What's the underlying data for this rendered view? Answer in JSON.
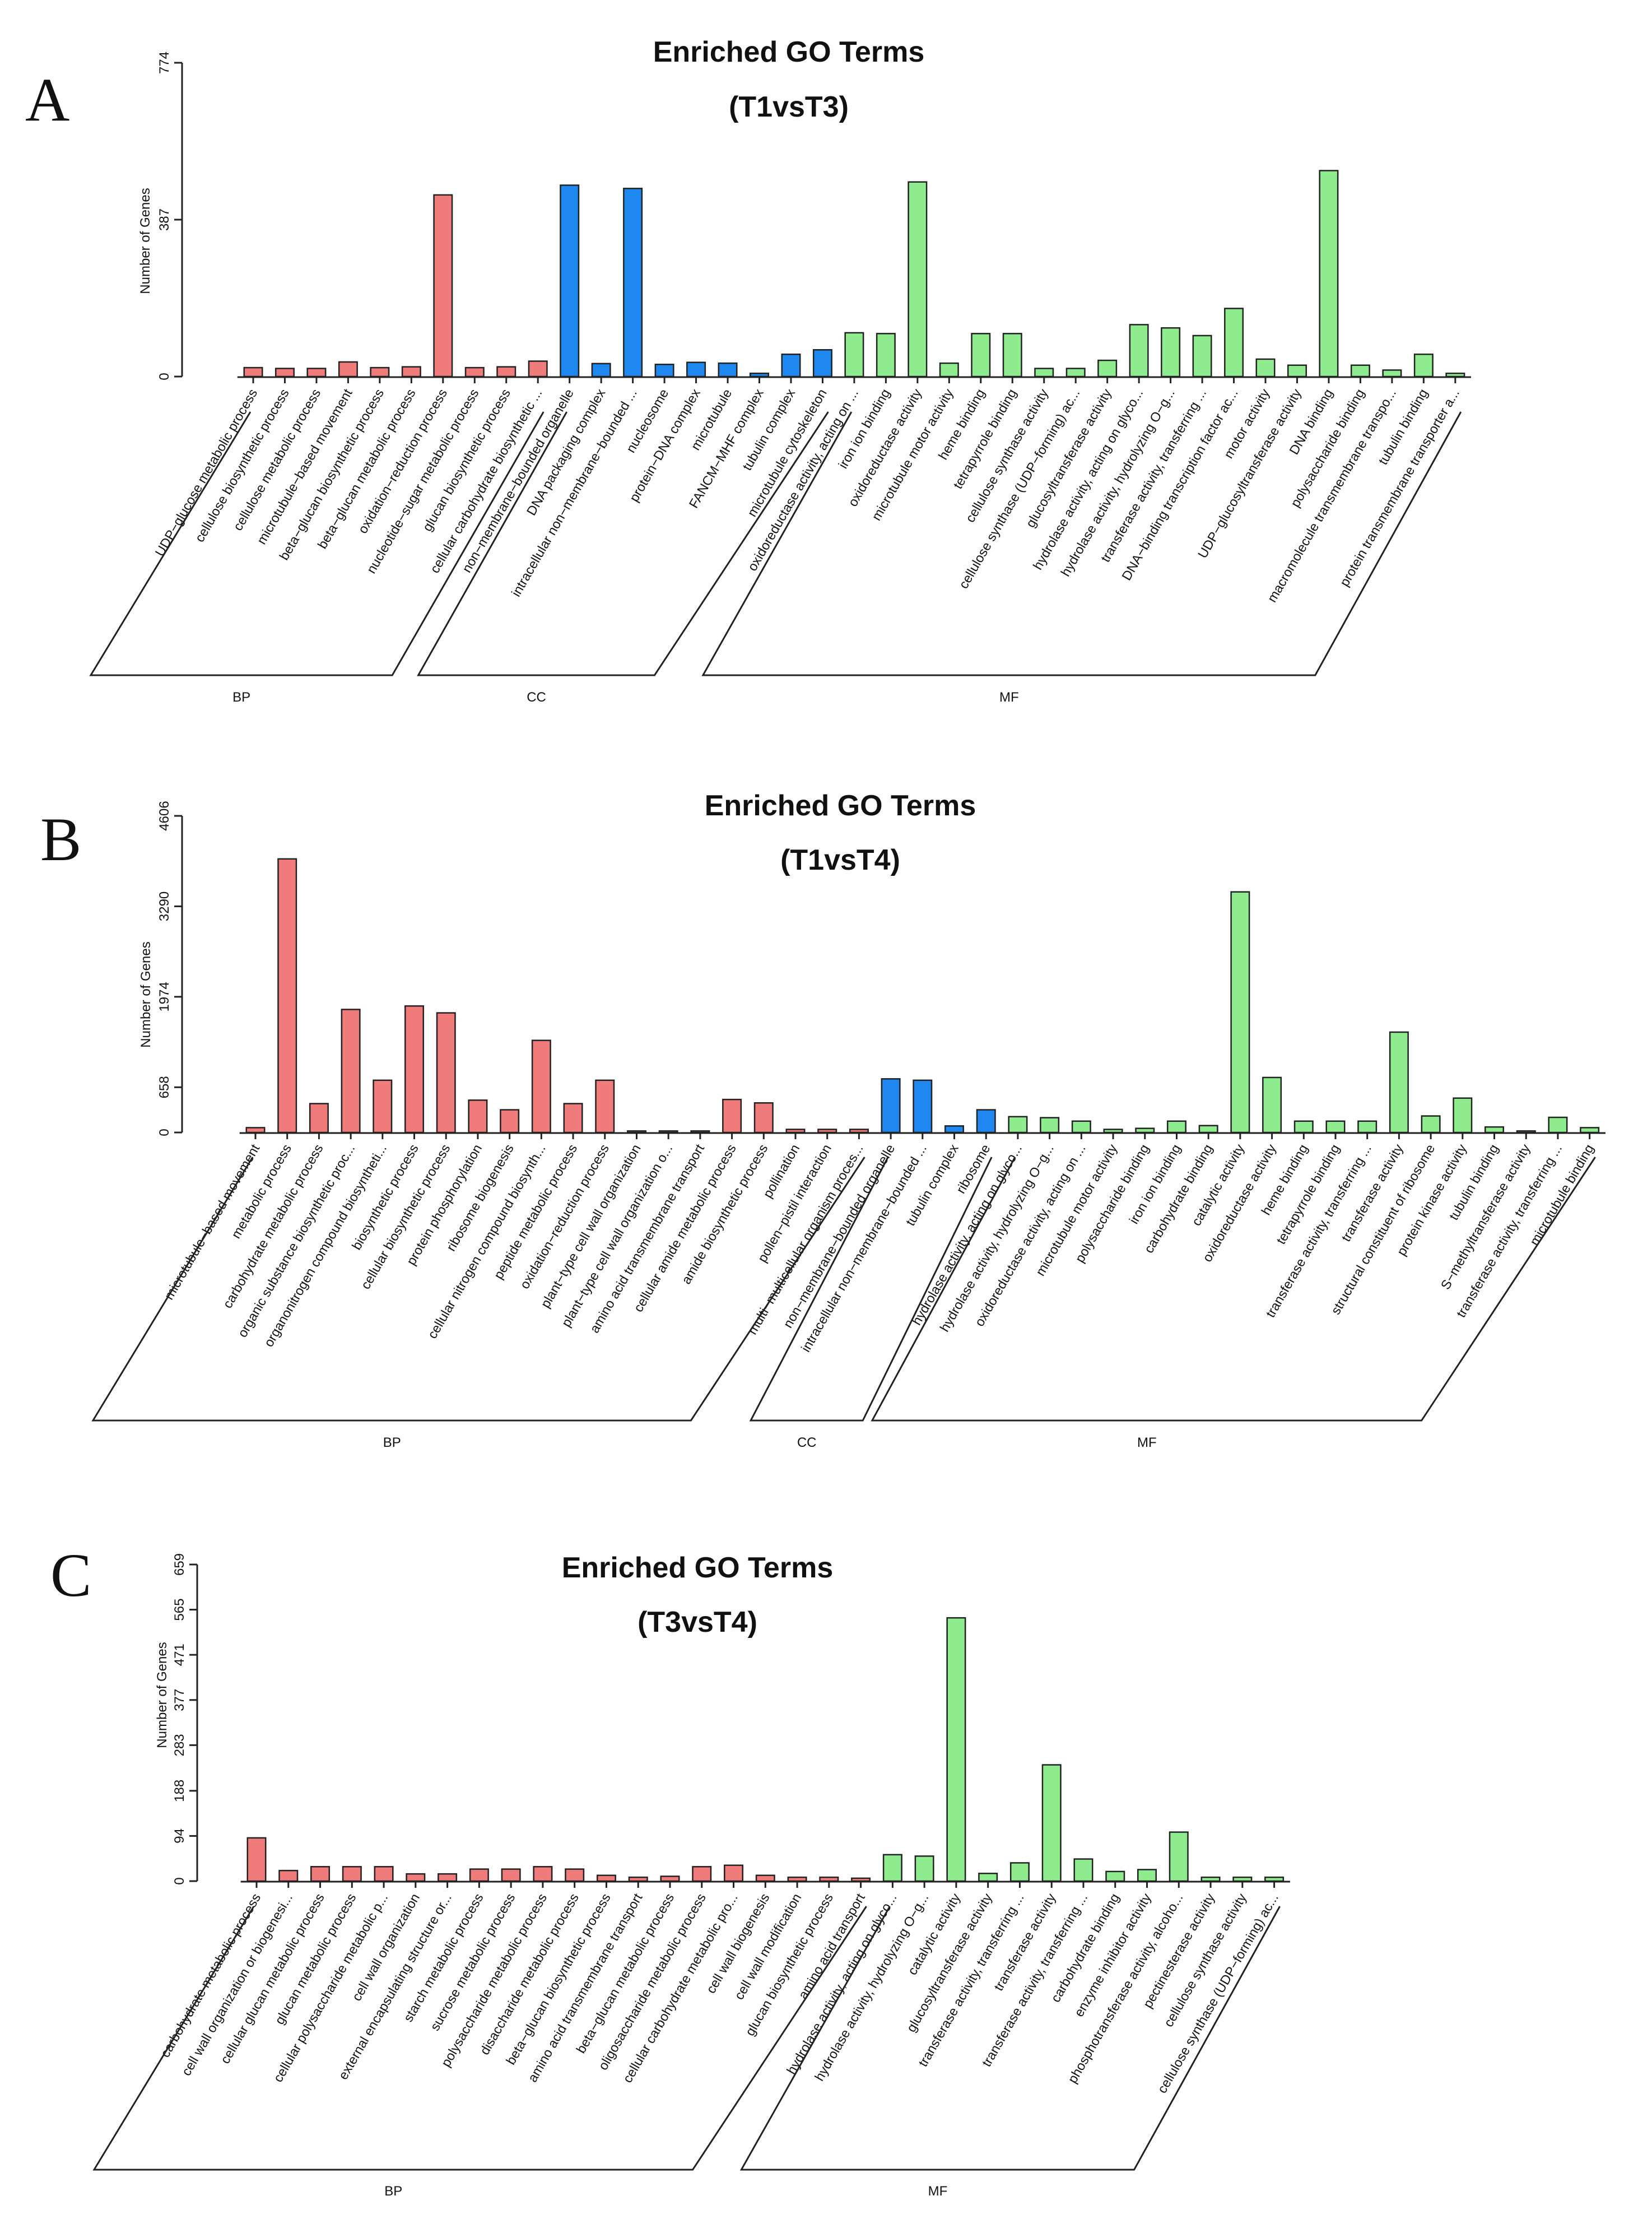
{
  "colors": {
    "BP": "#EF7B7B",
    "CC": "#1E88F0",
    "MF": "#8EEB8E"
  },
  "chart_data": [
    {
      "type": "bar",
      "panel": "A",
      "title": "Enriched GO Terms",
      "subtitle": "(T1vsT3)",
      "ylabel": "Number of Genes",
      "ylim": [
        0,
        774
      ],
      "yticks": [
        0,
        387,
        774
      ],
      "categories": [
        "UDP−glucose metabolic process",
        "cellulose biosynthetic process",
        "cellulose metabolic process",
        "microtubule−based movement",
        "beta−glucan biosynthetic process",
        "beta−glucan metabolic process",
        "oxidation−reduction process",
        "nucleotide−sugar metabolic process",
        "glucan biosynthetic process",
        "cellular carbohydrate biosynthetic ...",
        "non−membrane−bounded organelle",
        "DNA packaging complex",
        "intracellular non−membrane−bounded ...",
        "nucleosome",
        "protein−DNA complex",
        "microtubule",
        "FANCM−MHF complex",
        "tubulin complex",
        "microtubule cytoskeleton",
        "oxidoreductase activity, acting on ...",
        "iron ion binding",
        "oxidoreductase activity",
        "microtubule motor activity",
        "heme binding",
        "tetrapyrrole binding",
        "cellulose synthase activity",
        "cellulose synthase (UDP−forming) ac...",
        "glucosyltransferase activity",
        "hydrolase activity, acting on glyco...",
        "hydrolase activity, hydrolyzing O−g...",
        "transferase activity, transferring ...",
        "DNA−binding transcription factor ac...",
        "motor activity",
        "UDP−glucosyltransferase activity",
        "DNA binding",
        "polysaccharide binding",
        "macromolecule transmembrane transpo...",
        "tubulin binding",
        "protein transmembrane transporter a..."
      ],
      "groups": [
        "BP",
        "BP",
        "BP",
        "BP",
        "BP",
        "BP",
        "BP",
        "BP",
        "BP",
        "BP",
        "CC",
        "CC",
        "CC",
        "CC",
        "CC",
        "CC",
        "CC",
        "CC",
        "CC",
        "MF",
        "MF",
        "MF",
        "MF",
        "MF",
        "MF",
        "MF",
        "MF",
        "MF",
        "MF",
        "MF",
        "MF",
        "MF",
        "MF",
        "MF",
        "MF",
        "MF",
        "MF",
        "MF",
        "MF"
      ],
      "values": [
        22,
        20,
        20,
        36,
        22,
        24,
        448,
        22,
        24,
        38,
        472,
        32,
        464,
        30,
        35,
        33,
        8,
        55,
        66,
        108,
        106,
        480,
        33,
        106,
        106,
        20,
        20,
        40,
        128,
        120,
        101,
        168,
        43,
        28,
        508,
        28,
        16,
        55,
        8
      ],
      "group_labels": [
        "BP",
        "CC",
        "MF"
      ]
    },
    {
      "type": "bar",
      "panel": "B",
      "title": "Enriched GO Terms",
      "subtitle": "(T1vsT4)",
      "ylabel": "Number of Genes",
      "ylim": [
        0,
        4606
      ],
      "yticks": [
        0,
        658,
        1974,
        3290,
        4606
      ],
      "categories": [
        "microtubule−based movement",
        "metabolic process",
        "carbohydrate metabolic process",
        "organic substance biosynthetic proc...",
        "organonitrogen compound biosyntheti...",
        "biosynthetic process",
        "cellular biosynthetic process",
        "protein phosphorylation",
        "ribosome biogenesis",
        "cellular nitrogen compound biosynth...",
        "peptide metabolic process",
        "oxidation−reduction process",
        "plant−type cell wall organization",
        "plant−type cell wall organization o...",
        "amino acid transmembrane transport",
        "cellular amide metabolic process",
        "amide biosynthetic process",
        "pollination",
        "pollen−pistil interaction",
        "multi−multicellular organism proces...",
        "non−membrane−bounded organelle",
        "intracellular non−membrane−bounded ...",
        "tubulin complex",
        "ribosome",
        "hydrolase activity, acting on glyco...",
        "hydrolase activity, hydrolyzing O−g...",
        "oxidoreductase activity, acting on ...",
        "microtubule motor activity",
        "polysaccharide binding",
        "iron ion binding",
        "carbohydrate binding",
        "catalytic activity",
        "oxidoreductase activity",
        "heme binding",
        "tetrapyrrole binding",
        "transferase activity, transferring ...",
        "transferase activity",
        "structural constituent of ribosome",
        "protein kinase activity",
        "tubulin binding",
        "S−methyltransferase activity",
        "transferase activity, transferring ...",
        "microtubule binding"
      ],
      "groups": [
        "BP",
        "BP",
        "BP",
        "BP",
        "BP",
        "BP",
        "BP",
        "BP",
        "BP",
        "BP",
        "BP",
        "BP",
        "BP",
        "BP",
        "BP",
        "BP",
        "BP",
        "BP",
        "BP",
        "BP",
        "CC",
        "CC",
        "CC",
        "CC",
        "MF",
        "MF",
        "MF",
        "MF",
        "MF",
        "MF",
        "MF",
        "MF",
        "MF",
        "MF",
        "MF",
        "MF",
        "MF",
        "MF",
        "MF",
        "MF",
        "MF",
        "MF",
        "MF"
      ],
      "values": [
        70,
        3980,
        420,
        1790,
        760,
        1840,
        1740,
        470,
        330,
        1340,
        420,
        760,
        22,
        22,
        22,
        480,
        430,
        45,
        45,
        45,
        780,
        760,
        95,
        330,
        230,
        215,
        165,
        45,
        60,
        165,
        100,
        3500,
        800,
        165,
        165,
        165,
        1460,
        240,
        500,
        80,
        22,
        220,
        70
      ],
      "group_labels": [
        "BP",
        "CC",
        "MF"
      ]
    },
    {
      "type": "bar",
      "panel": "C",
      "title": "Enriched GO Terms",
      "subtitle": "(T3vsT4)",
      "ylabel": "Number of Genes",
      "ylim": [
        0,
        659
      ],
      "yticks": [
        0,
        94,
        188,
        283,
        377,
        471,
        565,
        659
      ],
      "categories": [
        "carbohydrate metabolic process",
        "cell wall organization or biogenesi...",
        "cellular glucan metabolic process",
        "glucan metabolic process",
        "cellular polysaccharide metabolic p...",
        "cell wall organization",
        "external encapsulating structure or...",
        "starch metabolic process",
        "sucrose metabolic process",
        "polysaccharide metabolic process",
        "disaccharide metabolic process",
        "beta−glucan biosynthetic process",
        "amino acid transmembrane transport",
        "beta−glucan metabolic process",
        "oligosaccharide metabolic process",
        "cellular carbohydrate metabolic pro...",
        "cell wall biogenesis",
        "cell wall modification",
        "glucan biosynthetic process",
        "amino acid transport",
        "hydrolase activity, acting on glyco...",
        "hydrolase activity, hydrolyzing O−g...",
        "catalytic activity",
        "glucosyltransferase activity",
        "transferase activity, transferring ...",
        "transferase activity",
        "transferase activity, transferring ...",
        "carbohydrate binding",
        "enzyme inhibitor activity",
        "phosphotransferase activity, alcoho...",
        "pectinesterase activity",
        "cellulose synthase activity",
        "cellulose synthase (UDP−forming) ac..."
      ],
      "groups": [
        "BP",
        "BP",
        "BP",
        "BP",
        "BP",
        "BP",
        "BP",
        "BP",
        "BP",
        "BP",
        "BP",
        "BP",
        "BP",
        "BP",
        "BP",
        "BP",
        "BP",
        "BP",
        "BP",
        "BP",
        "MF",
        "MF",
        "MF",
        "MF",
        "MF",
        "MF",
        "MF",
        "MF",
        "MF",
        "MF",
        "MF",
        "MF",
        "MF"
      ],
      "values": [
        90,
        22,
        30,
        30,
        30,
        15,
        15,
        25,
        25,
        30,
        25,
        12,
        8,
        10,
        30,
        33,
        12,
        8,
        8,
        6,
        55,
        52,
        548,
        16,
        38,
        242,
        46,
        20,
        24,
        102,
        8,
        8,
        8
      ],
      "group_labels": [
        "BP",
        "MF"
      ]
    }
  ]
}
